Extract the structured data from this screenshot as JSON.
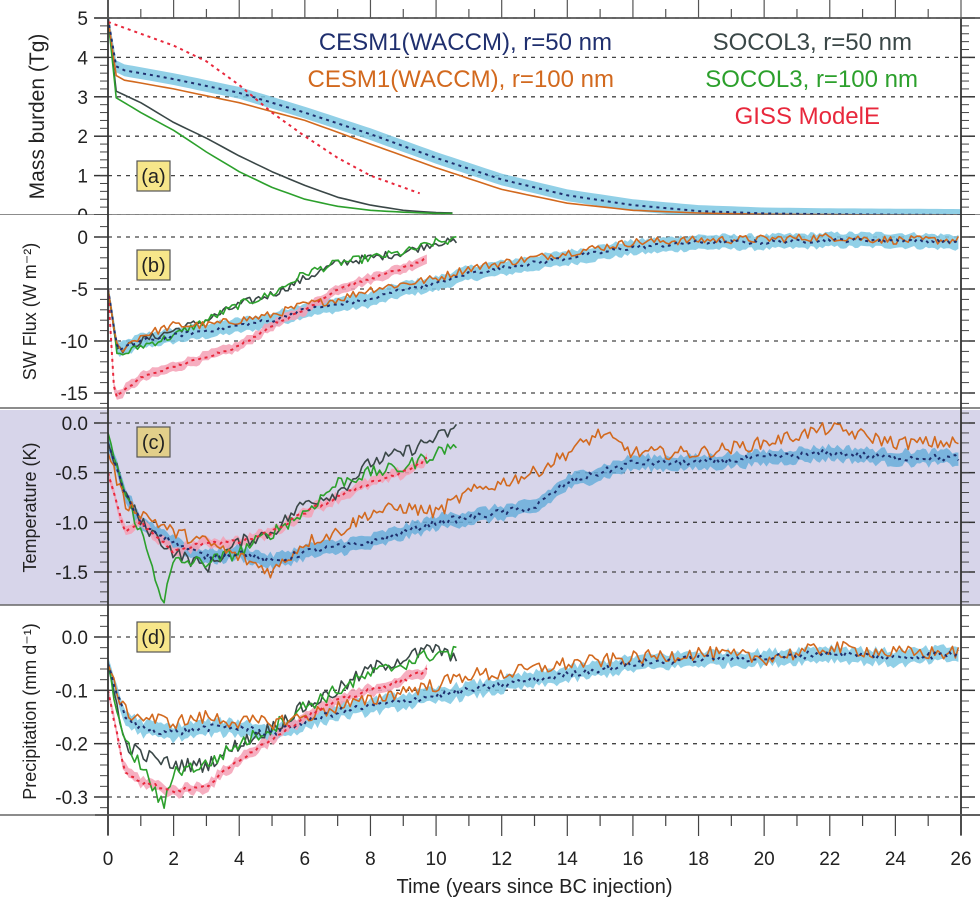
{
  "chart_data": {
    "type": "line",
    "title": "",
    "xlabel": "Time (years since BC injection)",
    "xlim": [
      0,
      26
    ],
    "xticks": [
      0,
      2,
      4,
      6,
      8,
      10,
      12,
      14,
      16,
      18,
      20,
      22,
      24,
      26
    ],
    "xtick_labels": [
      "0",
      "2",
      "4",
      "6",
      "8",
      "10",
      "12",
      "14",
      "16",
      "18",
      "20",
      "22",
      "24",
      "26"
    ],
    "legend": {
      "placement": "top (inside panel a)",
      "entries": [
        {
          "label": "CESM1(WACCM), r=50 nm",
          "color": "#1f2f6e",
          "style": "dotted-with-band"
        },
        {
          "label": "CESM1(WACCM), r=100 nm",
          "color": "#d2691e",
          "style": "solid"
        },
        {
          "label": "SOCOL3, r=50 nm",
          "color": "#3a4747",
          "style": "solid"
        },
        {
          "label": "SOCOL3, r=100 nm",
          "color": "#2ca02c",
          "style": "solid"
        },
        {
          "label": "GISS ModelE",
          "color": "#e8283c",
          "style": "dotted-with-band"
        }
      ]
    },
    "band_colors": {
      "cesm_band": "#7ec8e3",
      "giss_band": "#f4a0b5"
    },
    "panels": [
      {
        "tag": "(a)",
        "ylabel": "Mass burden (Tg)",
        "ylim": [
          0,
          5
        ],
        "yticks": [
          0,
          1,
          2,
          3,
          4,
          5
        ],
        "ytick_labels": [
          "0",
          "1",
          "2",
          "3",
          "4",
          "5"
        ],
        "background": "#ffffff",
        "series": {
          "cesm50": {
            "x": [
              0,
              0.1,
              0.3,
              1,
              2,
              4,
              6,
              8,
              10,
              12,
              14,
              16,
              18,
              20,
              22,
              24,
              26
            ],
            "y": [
              5,
              4.0,
              3.7,
              3.6,
              3.45,
              3.1,
              2.6,
              2.05,
              1.45,
              0.9,
              0.5,
              0.25,
              0.1,
              0.04,
              0.02,
              0.01,
              0.0
            ]
          },
          "cesm100": {
            "x": [
              0,
              0.1,
              0.3,
              1,
              2,
              4,
              6,
              8,
              10,
              12,
              14,
              16,
              18,
              20,
              22,
              24,
              26
            ],
            "y": [
              5,
              3.8,
              3.45,
              3.35,
              3.2,
              2.85,
              2.4,
              1.8,
              1.2,
              0.65,
              0.3,
              0.12,
              0.05,
              0.02,
              0.01,
              0.0,
              0.0
            ]
          },
          "socol50": {
            "x": [
              0,
              0.1,
              1,
              2,
              3,
              4,
              5,
              6,
              7,
              8,
              9,
              10,
              10.7
            ],
            "y": [
              5,
              3.2,
              2.85,
              2.35,
              1.95,
              1.5,
              1.1,
              0.75,
              0.45,
              0.25,
              0.12,
              0.06,
              0.05
            ]
          },
          "socol100": {
            "x": [
              0,
              0.1,
              1,
              2,
              3,
              4,
              5,
              6,
              7,
              8,
              9,
              10,
              10.7
            ],
            "y": [
              5,
              3.05,
              2.6,
              2.15,
              1.6,
              1.1,
              0.7,
              0.4,
              0.22,
              0.12,
              0.07,
              0.04,
              0.04
            ]
          },
          "giss": {
            "x": [
              0,
              1,
              2,
              3,
              4,
              5,
              6,
              7,
              8,
              9,
              9.5
            ],
            "y": [
              4.9,
              4.6,
              4.3,
              3.9,
              3.3,
              2.6,
              2.0,
              1.45,
              1.0,
              0.7,
              0.55
            ]
          }
        }
      },
      {
        "tag": "(b)",
        "ylabel": "SW Flux (W m⁻²)",
        "ylim": [
          -16.5,
          1.5
        ],
        "yticks": [
          0,
          -5,
          -10,
          -15
        ],
        "ytick_labels": [
          "0",
          "-5",
          "-10",
          "-15"
        ],
        "background": "#ffffff",
        "series": {
          "cesm50": {
            "x": [
              0,
              0.3,
              1,
              2,
              3,
              4,
              5,
              6,
              7,
              8,
              9,
              10,
              11,
              12,
              13,
              14,
              15,
              16,
              18,
              20,
              22,
              24,
              26
            ],
            "y": [
              -5,
              -11,
              -10,
              -9.5,
              -9,
              -8.5,
              -8,
              -7,
              -6.5,
              -6,
              -5,
              -4.5,
              -3.5,
              -3,
              -2.5,
              -2,
              -1.5,
              -1,
              -0.5,
              -0.5,
              -0.3,
              -0.3,
              -0.5
            ]
          },
          "cesm100": {
            "x": [
              0,
              0.3,
              1,
              2,
              3,
              4,
              5,
              6,
              7,
              8,
              9,
              10,
              11,
              12,
              13,
              14,
              15,
              16,
              18,
              20,
              22,
              24,
              26
            ],
            "y": [
              -5,
              -11,
              -9.5,
              -8.5,
              -8.5,
              -8,
              -7.5,
              -6.5,
              -6,
              -5,
              -4.5,
              -4,
              -3,
              -2.5,
              -2,
              -1.5,
              -1,
              -0.5,
              -0.3,
              -0.2,
              0.0,
              -0.3,
              -0.3
            ]
          },
          "socol50": {
            "x": [
              0,
              0.3,
              1,
              2,
              3,
              4,
              5,
              6,
              7,
              8,
              9,
              10,
              10.7
            ],
            "y": [
              -5,
              -11,
              -10,
              -9,
              -8,
              -6.5,
              -5.5,
              -4,
              -2.5,
              -2,
              -1.5,
              -0.5,
              -0.5
            ]
          },
          "socol100": {
            "x": [
              0,
              0.3,
              1,
              2,
              3,
              4,
              5,
              6,
              7,
              8,
              9,
              10,
              10.7
            ],
            "y": [
              -5,
              -11.5,
              -10.5,
              -9.5,
              -8,
              -6.5,
              -5.5,
              -3.5,
              -2.5,
              -2,
              -1.5,
              -0.5,
              -0.3
            ]
          },
          "giss": {
            "x": [
              0,
              0.2,
              1,
              2,
              3,
              4,
              5,
              6,
              7,
              8,
              9,
              9.8
            ],
            "y": [
              -5,
              -15.5,
              -13.5,
              -12.5,
              -11.5,
              -10.5,
              -8.5,
              -7,
              -5,
              -4,
              -3,
              -2
            ]
          }
        }
      },
      {
        "tag": "(c)",
        "ylabel": "Temperature (K)",
        "ylim": [
          -1.85,
          0.05
        ],
        "yticks": [
          0.0,
          -0.5,
          -1.0,
          -1.5
        ],
        "ytick_labels": [
          "0.0",
          "-0.5",
          "-1.0",
          "-1.5"
        ],
        "background": "#d7d5ea",
        "series": {
          "cesm50": {
            "x": [
              0,
              0.5,
              1,
              2,
              3,
              4,
              5,
              6,
              7,
              8,
              9,
              10,
              11,
              12,
              13,
              14,
              15,
              16,
              18,
              20,
              22,
              24,
              26
            ],
            "y": [
              -0.2,
              -0.7,
              -1.0,
              -1.2,
              -1.35,
              -1.3,
              -1.4,
              -1.3,
              -1.25,
              -1.2,
              -1.1,
              -1.0,
              -0.95,
              -0.9,
              -0.85,
              -0.6,
              -0.5,
              -0.4,
              -0.4,
              -0.35,
              -0.3,
              -0.35,
              -0.35
            ]
          },
          "cesm100": {
            "x": [
              0,
              0.5,
              1,
              2,
              3,
              4,
              5,
              6,
              7,
              8,
              9,
              10,
              11,
              12,
              13,
              14,
              15,
              16,
              18,
              20,
              22,
              24,
              26
            ],
            "y": [
              -0.3,
              -0.8,
              -0.9,
              -1.1,
              -1.2,
              -1.35,
              -1.5,
              -1.2,
              -1.1,
              -0.9,
              -0.85,
              -0.9,
              -0.7,
              -0.6,
              -0.5,
              -0.3,
              -0.1,
              -0.3,
              -0.3,
              -0.2,
              -0.05,
              -0.2,
              -0.2
            ]
          },
          "socol50": {
            "x": [
              0,
              0.5,
              1,
              2,
              3,
              4,
              5,
              6,
              7,
              8,
              9,
              10,
              10.7
            ],
            "y": [
              -0.2,
              -0.7,
              -1.0,
              -1.3,
              -1.45,
              -1.2,
              -1.1,
              -0.8,
              -0.7,
              -0.4,
              -0.3,
              -0.15,
              -0.05
            ]
          },
          "socol100": {
            "x": [
              0,
              0.5,
              1,
              1.7,
              2,
              3,
              4,
              5,
              6,
              7,
              8,
              9,
              10,
              10.7
            ],
            "y": [
              -0.1,
              -0.7,
              -1.1,
              -1.8,
              -1.4,
              -1.4,
              -1.3,
              -1.1,
              -0.9,
              -0.6,
              -0.5,
              -0.45,
              -0.3,
              -0.2
            ]
          },
          "giss": {
            "x": [
              0,
              0.5,
              1,
              2,
              3,
              4,
              5,
              6,
              7,
              8,
              9,
              9.8
            ],
            "y": [
              -0.5,
              -1.1,
              -1.0,
              -1.3,
              -1.2,
              -1.2,
              -1.1,
              -0.9,
              -0.75,
              -0.6,
              -0.5,
              -0.35
            ]
          }
        }
      },
      {
        "tag": "(d)",
        "ylabel": "Precipitation (mm d⁻¹)",
        "ylim": [
          -0.32,
          0.05
        ],
        "yticks": [
          0.0,
          -0.1,
          -0.2,
          -0.3
        ],
        "ytick_labels": [
          "0.0",
          "-0.1",
          "-0.2",
          "-0.3"
        ],
        "background": "#ffffff",
        "series": {
          "cesm50": {
            "x": [
              0,
              0.5,
              1,
              2,
              3,
              4,
              5,
              6,
              7,
              8,
              9,
              10,
              11,
              12,
              13,
              14,
              16,
              18,
              20,
              22,
              24,
              26
            ],
            "y": [
              -0.05,
              -0.15,
              -0.17,
              -0.18,
              -0.17,
              -0.17,
              -0.18,
              -0.16,
              -0.14,
              -0.13,
              -0.12,
              -0.11,
              -0.1,
              -0.09,
              -0.08,
              -0.07,
              -0.05,
              -0.04,
              -0.04,
              -0.03,
              -0.04,
              -0.03
            ]
          },
          "cesm100": {
            "x": [
              0,
              0.5,
              1,
              2,
              3,
              4,
              5,
              6,
              7,
              8,
              9,
              10,
              11,
              12,
              13,
              14,
              16,
              18,
              20,
              22,
              24,
              26
            ],
            "y": [
              -0.05,
              -0.14,
              -0.15,
              -0.16,
              -0.15,
              -0.16,
              -0.16,
              -0.15,
              -0.13,
              -0.12,
              -0.1,
              -0.09,
              -0.07,
              -0.07,
              -0.06,
              -0.05,
              -0.04,
              -0.03,
              -0.04,
              -0.02,
              -0.03,
              -0.03
            ]
          },
          "socol50": {
            "x": [
              0,
              0.5,
              1,
              2,
              3,
              4,
              5,
              6,
              7,
              8,
              9,
              10,
              10.7
            ],
            "y": [
              -0.05,
              -0.2,
              -0.22,
              -0.24,
              -0.24,
              -0.2,
              -0.17,
              -0.13,
              -0.1,
              -0.06,
              -0.04,
              -0.02,
              -0.05
            ]
          },
          "socol100": {
            "x": [
              0,
              0.5,
              1,
              1.7,
              2,
              3,
              4,
              5,
              6,
              7,
              8,
              9,
              10,
              10.7
            ],
            "y": [
              -0.05,
              -0.2,
              -0.24,
              -0.32,
              -0.25,
              -0.24,
              -0.2,
              -0.17,
              -0.13,
              -0.1,
              -0.07,
              -0.05,
              -0.03,
              -0.03
            ]
          },
          "giss": {
            "x": [
              0,
              0.5,
              1,
              2,
              3,
              4,
              5,
              6,
              7,
              8,
              9,
              9.8
            ],
            "y": [
              -0.1,
              -0.25,
              -0.27,
              -0.29,
              -0.28,
              -0.23,
              -0.19,
              -0.15,
              -0.12,
              -0.1,
              -0.08,
              -0.06
            ]
          }
        }
      }
    ]
  }
}
